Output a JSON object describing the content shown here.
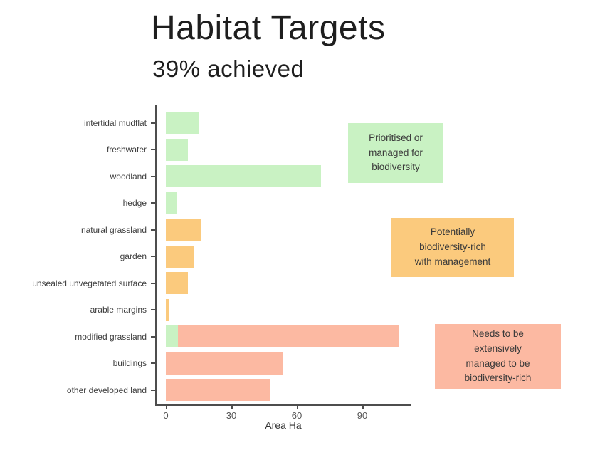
{
  "page": {
    "background": "#ffffff"
  },
  "chart_data": {
    "type": "bar",
    "orientation": "horizontal",
    "title": "Habitat Targets",
    "subtitle": "39% achieved",
    "xlabel": "Area Ha",
    "x_ticks": [
      0,
      30,
      60,
      90
    ],
    "xlim": [
      0,
      112
    ],
    "grid": false,
    "legend_position": "right-annotations",
    "colors": {
      "prioritised": "#c9f2c3",
      "potential": "#fbca7d",
      "needs_management": "#fcb9a2"
    },
    "categories": [
      "intertidal mudflat",
      "freshwater",
      "woodland",
      "hedge",
      "natural grassland",
      "garden",
      "unsealed unvegetated surface",
      "arable margins",
      "modified grassland",
      "buildings",
      "other developed land"
    ],
    "bars": [
      {
        "category": "intertidal mudflat",
        "segments": [
          {
            "group": "prioritised",
            "value": 15
          }
        ]
      },
      {
        "category": "freshwater",
        "segments": [
          {
            "group": "prioritised",
            "value": 10
          }
        ]
      },
      {
        "category": "woodland",
        "segments": [
          {
            "group": "prioritised",
            "value": 71
          }
        ]
      },
      {
        "category": "hedge",
        "segments": [
          {
            "group": "prioritised",
            "value": 5
          }
        ]
      },
      {
        "category": "natural grassland",
        "segments": [
          {
            "group": "potential",
            "value": 16
          }
        ]
      },
      {
        "category": "garden",
        "segments": [
          {
            "group": "potential",
            "value": 13
          }
        ]
      },
      {
        "category": "unsealed unvegetated surface",
        "segments": [
          {
            "group": "potential",
            "value": 10
          }
        ]
      },
      {
        "category": "arable margins",
        "segments": [
          {
            "group": "potential",
            "value": 1.5
          }
        ]
      },
      {
        "category": "modified grassland",
        "segments": [
          {
            "group": "prioritised",
            "value": 5.5
          },
          {
            "group": "needs_management",
            "value": 101.5
          }
        ]
      },
      {
        "category": "buildings",
        "segments": [
          {
            "group": "needs_management",
            "value": 53.5
          }
        ]
      },
      {
        "category": "other developed land",
        "segments": [
          {
            "group": "needs_management",
            "value": 47.5
          }
        ]
      }
    ],
    "annotations": [
      {
        "group": "prioritised",
        "lines": [
          "Prioritised or",
          "managed for",
          "biodiversity"
        ]
      },
      {
        "group": "potential",
        "lines": [
          "Potentially",
          "biodiversity-rich",
          "with management"
        ]
      },
      {
        "group": "needs_management",
        "lines": [
          "Needs to be",
          "extensively",
          "managed to be",
          "biodiversity-rich"
        ]
      }
    ]
  }
}
